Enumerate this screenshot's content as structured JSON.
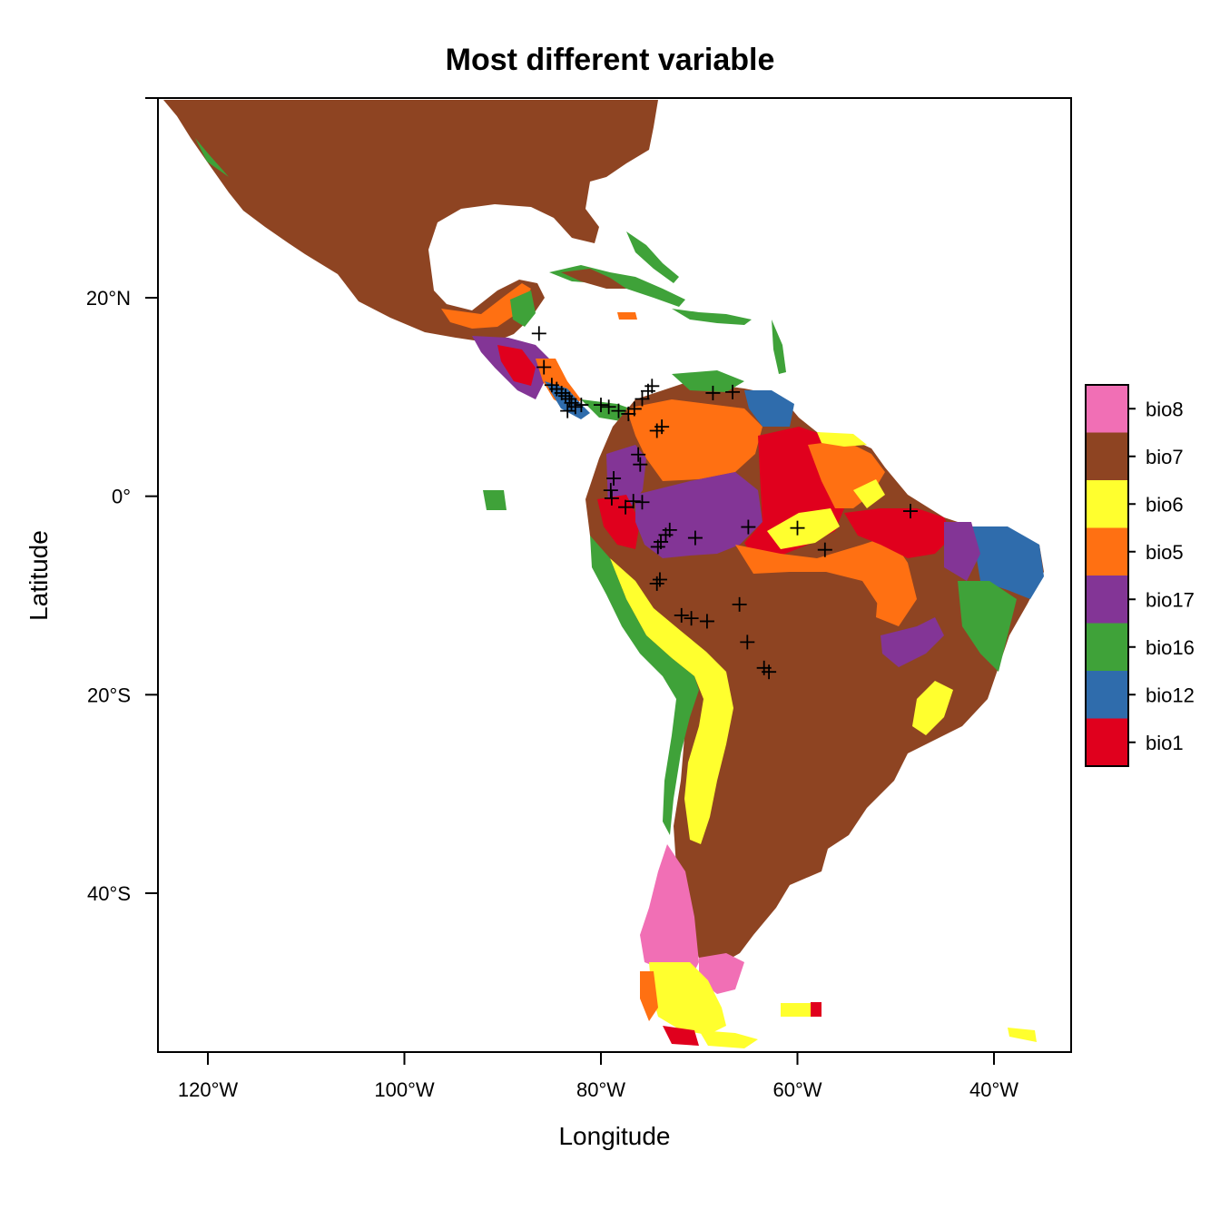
{
  "chart_data": {
    "type": "heatmap",
    "title": "Most different variable",
    "xlabel": "Longitude",
    "ylabel": "Latitude",
    "xlim": [
      -125,
      -32
    ],
    "ylim": [
      -56,
      40
    ],
    "x_ticks": [
      {
        "value": -120,
        "label": "120°W"
      },
      {
        "value": -100,
        "label": "100°W"
      },
      {
        "value": -80,
        "label": "80°W"
      },
      {
        "value": -60,
        "label": "60°W"
      },
      {
        "value": -40,
        "label": "40°W"
      }
    ],
    "y_ticks": [
      {
        "value": 20,
        "label": "20°N"
      },
      {
        "value": 0,
        "label": "0°"
      },
      {
        "value": -20,
        "label": "20°S"
      },
      {
        "value": -40,
        "label": "40°S"
      }
    ],
    "legend": {
      "placement": "right",
      "items": [
        {
          "label": "bio8",
          "color": "#F16FB5"
        },
        {
          "label": "bio7",
          "color": "#8E4422"
        },
        {
          "label": "bio6",
          "color": "#FFFF2E"
        },
        {
          "label": "bio5",
          "color": "#FF7012"
        },
        {
          "label": "bio17",
          "color": "#833596"
        },
        {
          "label": "bio16",
          "color": "#3FA239"
        },
        {
          "label": "bio12",
          "color": "#2F6CAC"
        },
        {
          "label": "bio1",
          "color": "#E0001D"
        }
      ]
    },
    "occurrence_points": [
      [
        -86.3,
        16.4
      ],
      [
        -85.8,
        13.0
      ],
      [
        -85.0,
        11.2
      ],
      [
        -84.5,
        10.8
      ],
      [
        -84.0,
        10.4
      ],
      [
        -83.6,
        10.1
      ],
      [
        -83.2,
        9.8
      ],
      [
        -83.0,
        9.4
      ],
      [
        -82.6,
        9.0
      ],
      [
        -83.4,
        8.6
      ],
      [
        -82.0,
        9.2
      ],
      [
        -80.0,
        9.2
      ],
      [
        -79.2,
        9.0
      ],
      [
        -78.2,
        8.6
      ],
      [
        -77.2,
        8.3
      ],
      [
        -76.6,
        8.8
      ],
      [
        -75.8,
        9.8
      ],
      [
        -75.2,
        10.6
      ],
      [
        -74.8,
        11.1
      ],
      [
        -73.8,
        7.0
      ],
      [
        -74.3,
        6.6
      ],
      [
        -76.2,
        4.2
      ],
      [
        -76.0,
        3.2
      ],
      [
        -78.7,
        1.8
      ],
      [
        -79.0,
        0.6
      ],
      [
        -78.9,
        -0.2
      ],
      [
        -76.7,
        -0.5
      ],
      [
        -75.8,
        -0.6
      ],
      [
        -77.5,
        -1.1
      ],
      [
        -73.0,
        -3.4
      ],
      [
        -73.4,
        -3.9
      ],
      [
        -73.9,
        -4.6
      ],
      [
        -74.2,
        -5.1
      ],
      [
        -70.4,
        -4.2
      ],
      [
        -65.0,
        -3.1
      ],
      [
        -60.0,
        -3.2
      ],
      [
        -57.2,
        -5.4
      ],
      [
        -48.5,
        -1.5
      ],
      [
        -68.6,
        10.4
      ],
      [
        -66.6,
        10.5
      ],
      [
        -74.0,
        -8.4
      ],
      [
        -74.3,
        -8.8
      ],
      [
        -71.8,
        -12.0
      ],
      [
        -70.8,
        -12.3
      ],
      [
        -69.2,
        -12.6
      ],
      [
        -65.9,
        -10.9
      ],
      [
        -65.1,
        -14.7
      ],
      [
        -63.4,
        -17.3
      ],
      [
        -62.9,
        -17.7
      ]
    ]
  }
}
